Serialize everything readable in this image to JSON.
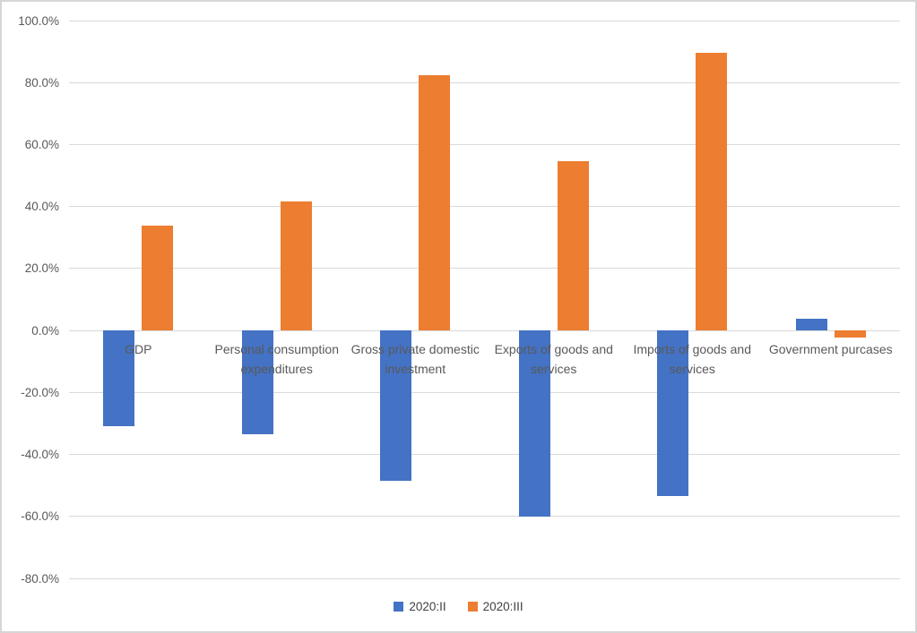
{
  "chart_data": {
    "type": "bar",
    "title": "",
    "categories": [
      "GDP",
      "Personal consumption expenditures",
      "Gross private domestic investment",
      "Exports of goods and services",
      "Imports of goods and services",
      "Government purcases"
    ],
    "series": [
      {
        "name": "2020:II",
        "color": "#4472C4",
        "values": [
          -31.0,
          -33.4,
          -48.6,
          -60.2,
          -53.4,
          3.9
        ]
      },
      {
        "name": "2020:III",
        "color": "#ED7D31",
        "values": [
          33.7,
          41.7,
          82.4,
          54.6,
          89.5,
          -2.2
        ]
      }
    ],
    "ylim": [
      -80,
      100
    ],
    "ytick_step": 20,
    "ytick_labels": [
      "100.0%",
      "80.0%",
      "60.0%",
      "40.0%",
      "20.0%",
      "0.0%",
      "-20.0%",
      "-40.0%",
      "-60.0%",
      "-80.0%"
    ],
    "ytick_values": [
      100,
      80,
      60,
      40,
      20,
      0,
      -20,
      -40,
      -60,
      -80
    ],
    "grid": true,
    "legend_position": "bottom",
    "colors": {
      "gridline": "#d9d9d9",
      "axis_text": "#595959",
      "legend_text": "#404040",
      "frame_border": "#d6d6d6"
    }
  }
}
